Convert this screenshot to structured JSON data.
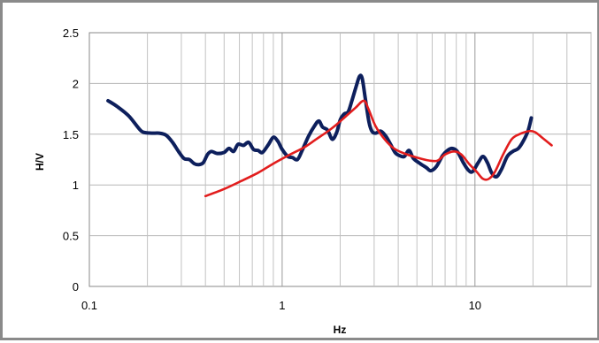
{
  "chart_data": {
    "type": "line",
    "title": "",
    "xlabel": "Hz",
    "ylabel": "H/V",
    "xscale": "log",
    "xlim": [
      0.1,
      40
    ],
    "ylim": [
      0,
      2.5
    ],
    "x_ticks": [
      0.1,
      1,
      10
    ],
    "x_tick_labels": [
      "0.1",
      "1",
      "10"
    ],
    "y_ticks": [
      0,
      0.5,
      1,
      1.5,
      2,
      2.5
    ],
    "y_tick_labels": [
      "0",
      "0.5",
      "1",
      "1.5",
      "2",
      "2.5"
    ],
    "grid": "on",
    "legend": "none",
    "series": [
      {
        "color": "#0d1f5c",
        "points": [
          [
            0.125,
            1.83
          ],
          [
            0.14,
            1.77
          ],
          [
            0.16,
            1.68
          ],
          [
            0.18,
            1.56
          ],
          [
            0.19,
            1.52
          ],
          [
            0.21,
            1.51
          ],
          [
            0.23,
            1.51
          ],
          [
            0.25,
            1.49
          ],
          [
            0.27,
            1.42
          ],
          [
            0.29,
            1.33
          ],
          [
            0.31,
            1.26
          ],
          [
            0.33,
            1.25
          ],
          [
            0.35,
            1.21
          ],
          [
            0.37,
            1.2
          ],
          [
            0.39,
            1.22
          ],
          [
            0.41,
            1.3
          ],
          [
            0.43,
            1.33
          ],
          [
            0.46,
            1.31
          ],
          [
            0.5,
            1.32
          ],
          [
            0.53,
            1.36
          ],
          [
            0.56,
            1.33
          ],
          [
            0.59,
            1.4
          ],
          [
            0.63,
            1.39
          ],
          [
            0.67,
            1.42
          ],
          [
            0.71,
            1.35
          ],
          [
            0.75,
            1.34
          ],
          [
            0.79,
            1.32
          ],
          [
            0.85,
            1.4
          ],
          [
            0.9,
            1.47
          ],
          [
            0.95,
            1.43
          ],
          [
            1.0,
            1.35
          ],
          [
            1.07,
            1.28
          ],
          [
            1.13,
            1.27
          ],
          [
            1.2,
            1.25
          ],
          [
            1.27,
            1.34
          ],
          [
            1.37,
            1.48
          ],
          [
            1.47,
            1.58
          ],
          [
            1.55,
            1.63
          ],
          [
            1.62,
            1.57
          ],
          [
            1.72,
            1.54
          ],
          [
            1.82,
            1.45
          ],
          [
            1.92,
            1.52
          ],
          [
            2.0,
            1.64
          ],
          [
            2.1,
            1.7
          ],
          [
            2.2,
            1.72
          ],
          [
            2.3,
            1.83
          ],
          [
            2.42,
            1.97
          ],
          [
            2.52,
            2.07
          ],
          [
            2.6,
            2.05
          ],
          [
            2.7,
            1.85
          ],
          [
            2.82,
            1.62
          ],
          [
            2.92,
            1.53
          ],
          [
            3.05,
            1.51
          ],
          [
            3.25,
            1.53
          ],
          [
            3.45,
            1.48
          ],
          [
            3.65,
            1.4
          ],
          [
            3.85,
            1.32
          ],
          [
            4.05,
            1.29
          ],
          [
            4.3,
            1.28
          ],
          [
            4.55,
            1.34
          ],
          [
            4.8,
            1.26
          ],
          [
            5.2,
            1.21
          ],
          [
            5.6,
            1.17
          ],
          [
            5.9,
            1.14
          ],
          [
            6.3,
            1.18
          ],
          [
            6.8,
            1.29
          ],
          [
            7.2,
            1.34
          ],
          [
            7.6,
            1.36
          ],
          [
            8.1,
            1.33
          ],
          [
            8.7,
            1.22
          ],
          [
            9.2,
            1.15
          ],
          [
            9.7,
            1.13
          ],
          [
            10.4,
            1.22
          ],
          [
            11.0,
            1.28
          ],
          [
            11.6,
            1.22
          ],
          [
            12.2,
            1.12
          ],
          [
            12.9,
            1.08
          ],
          [
            13.7,
            1.15
          ],
          [
            14.7,
            1.28
          ],
          [
            15.7,
            1.33
          ],
          [
            16.8,
            1.36
          ],
          [
            17.9,
            1.44
          ],
          [
            18.9,
            1.54
          ],
          [
            19.6,
            1.66
          ]
        ]
      },
      {
        "color": "#e21d1d",
        "points": [
          [
            0.4,
            0.89
          ],
          [
            0.5,
            0.96
          ],
          [
            0.6,
            1.03
          ],
          [
            0.75,
            1.12
          ],
          [
            0.9,
            1.21
          ],
          [
            1.1,
            1.3
          ],
          [
            1.3,
            1.37
          ],
          [
            1.5,
            1.45
          ],
          [
            1.7,
            1.52
          ],
          [
            1.9,
            1.59
          ],
          [
            2.15,
            1.68
          ],
          [
            2.4,
            1.76
          ],
          [
            2.65,
            1.83
          ],
          [
            2.8,
            1.75
          ],
          [
            3.05,
            1.58
          ],
          [
            3.4,
            1.45
          ],
          [
            3.8,
            1.36
          ],
          [
            4.3,
            1.31
          ],
          [
            5.0,
            1.27
          ],
          [
            5.8,
            1.24
          ],
          [
            6.4,
            1.24
          ],
          [
            7.0,
            1.3
          ],
          [
            7.8,
            1.33
          ],
          [
            8.5,
            1.3
          ],
          [
            9.3,
            1.21
          ],
          [
            10.2,
            1.13
          ],
          [
            11.0,
            1.06
          ],
          [
            11.8,
            1.06
          ],
          [
            12.7,
            1.13
          ],
          [
            14.0,
            1.3
          ],
          [
            15.5,
            1.45
          ],
          [
            17.0,
            1.5
          ],
          [
            19.0,
            1.53
          ],
          [
            20.5,
            1.52
          ],
          [
            22.5,
            1.46
          ],
          [
            25.0,
            1.39
          ]
        ]
      }
    ]
  }
}
